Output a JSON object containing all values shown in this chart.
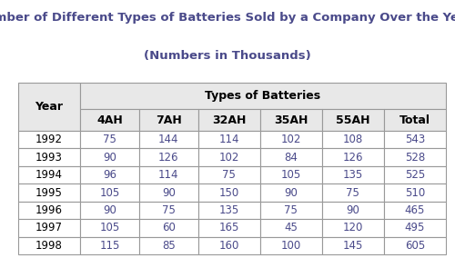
{
  "title_line1": "Number of Different Types of Batteries Sold by a Company Over the Years",
  "title_line2": "(Numbers in Thousands)",
  "title_color": "#4A4A8A",
  "title_fontsize": 9.5,
  "col_header_main": "Types of Batteries",
  "col_header_sub": [
    "4AH",
    "7AH",
    "32AH",
    "35AH",
    "55AH",
    "Total"
  ],
  "row_header": "Year",
  "years": [
    "1992",
    "1993",
    "1994",
    "1995",
    "1996",
    "1997",
    "1998"
  ],
  "data": [
    [
      75,
      144,
      114,
      102,
      108,
      543
    ],
    [
      90,
      126,
      102,
      84,
      126,
      528
    ],
    [
      96,
      114,
      75,
      105,
      135,
      525
    ],
    [
      105,
      90,
      150,
      90,
      75,
      510
    ],
    [
      90,
      75,
      135,
      75,
      90,
      465
    ],
    [
      105,
      60,
      165,
      45,
      120,
      495
    ],
    [
      115,
      85,
      160,
      100,
      145,
      605
    ]
  ],
  "header_bg": "#E8E8E8",
  "cell_bg": "#FFFFFF",
  "border_color": "#999999",
  "data_text_color": "#4A4A8A",
  "header_text_color": "#000000",
  "year_text_color": "#000000",
  "background_color": "#FFFFFF",
  "table_fontsize": 8.5,
  "header_fontsize": 9.0
}
